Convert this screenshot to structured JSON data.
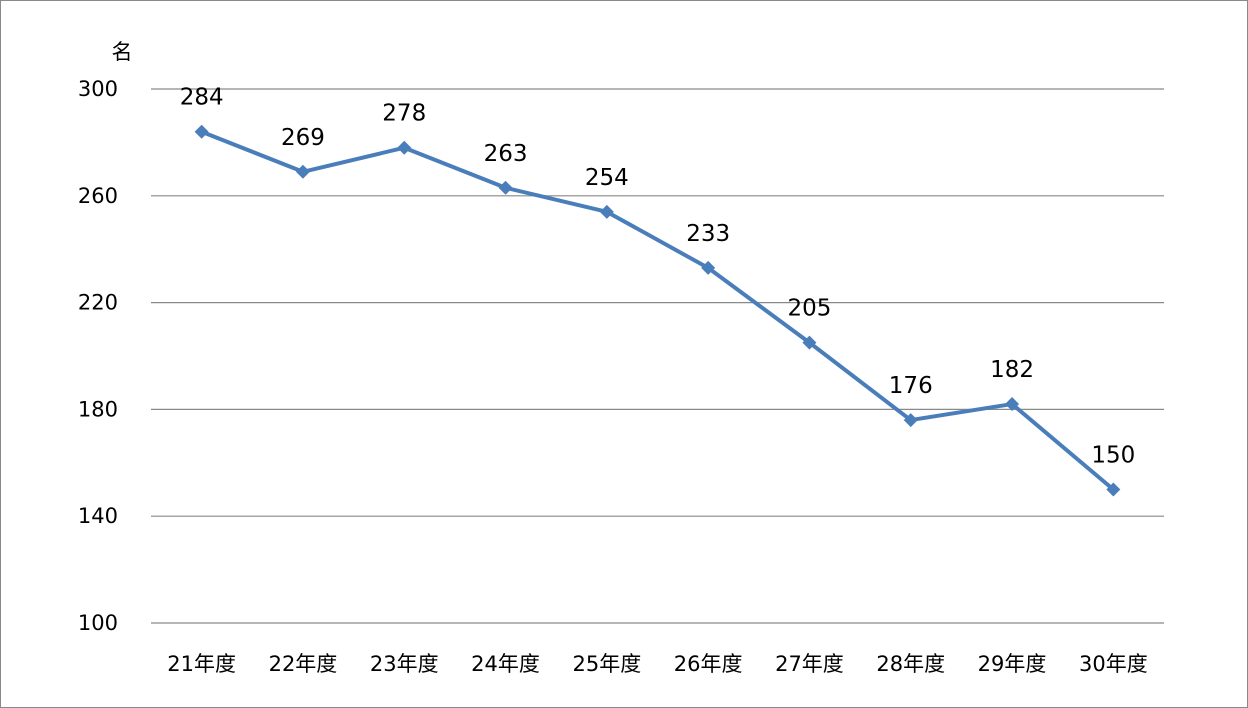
{
  "chart_data": {
    "type": "line",
    "title": "",
    "xlabel": "",
    "ylabel": "",
    "y_unit": "名",
    "categories": [
      "21年度",
      "22年度",
      "23年度",
      "24年度",
      "25年度",
      "26年度",
      "27年度",
      "28年度",
      "29年度",
      "30年度"
    ],
    "series": [
      {
        "values": [
          284,
          269,
          278,
          263,
          254,
          233,
          205,
          176,
          182,
          150
        ],
        "color": "#4a7ebb",
        "marker": "diamond"
      }
    ],
    "ylim": [
      100,
      300
    ],
    "yticks": [
      100,
      140,
      180,
      220,
      260,
      300
    ],
    "grid": true,
    "legend": "none",
    "data_labels": true
  }
}
